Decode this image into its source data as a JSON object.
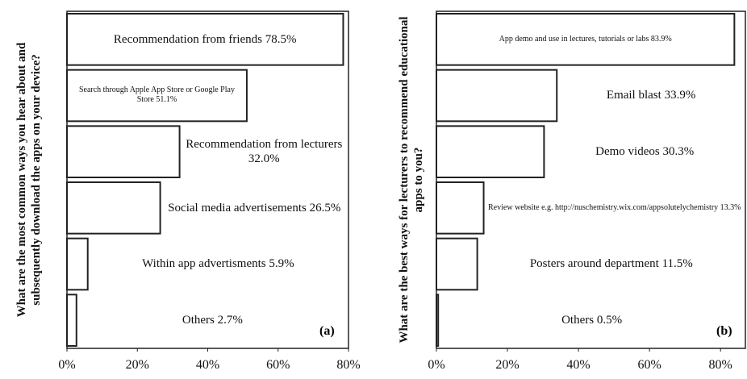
{
  "chart_data": [
    {
      "type": "bar",
      "orientation": "horizontal",
      "y_label": "What are the most common ways you hear about and subsequently download the apps on your device?",
      "panel_label": "(a)",
      "categories": [
        "Recommendation from friends",
        "Search through Apple App Store or Google Play Store",
        "Recommendation from lecturers",
        "Social media advertisements",
        "Within app advertisments",
        "Others"
      ],
      "values": [
        78.5,
        51.1,
        32.0,
        26.5,
        5.9,
        2.7
      ],
      "value_labels": [
        "78.5%",
        "51.1%",
        "32.0%",
        "26.5%",
        "5.9%",
        "2.7%"
      ],
      "color": "#ffffff",
      "xlim": [
        0,
        80
      ],
      "xticks": [
        {
          "value": 0,
          "label": "0%"
        },
        {
          "value": 20,
          "label": "20%"
        },
        {
          "value": 40,
          "label": "40%"
        },
        {
          "value": 60,
          "label": "60%"
        },
        {
          "value": 80,
          "label": "80%"
        }
      ]
    },
    {
      "type": "bar",
      "orientation": "horizontal",
      "y_label": "What are the best ways for lecturers to recommend educational apps to you?",
      "panel_label": "(b)",
      "categories": [
        "App demo and use in lectures, tutorials or labs",
        "Email blast",
        "Demo videos",
        "Review website e.g. http://nuschemistry.wix.com/appsolutelychemistry",
        "Posters around department",
        "Others"
      ],
      "values": [
        83.9,
        33.9,
        30.3,
        13.3,
        11.5,
        0.5
      ],
      "value_labels": [
        "83.9%",
        "33.9%",
        "30.3%",
        "13.3%",
        "11.5%",
        "0.5%"
      ],
      "color": "#ffffff",
      "xlim": [
        0,
        87
      ],
      "xticks": [
        {
          "value": 0,
          "label": "0%"
        },
        {
          "value": 20,
          "label": "20%"
        },
        {
          "value": 40,
          "label": "40%"
        },
        {
          "value": 60,
          "label": "60%"
        },
        {
          "value": 80,
          "label": "80%"
        }
      ]
    }
  ]
}
